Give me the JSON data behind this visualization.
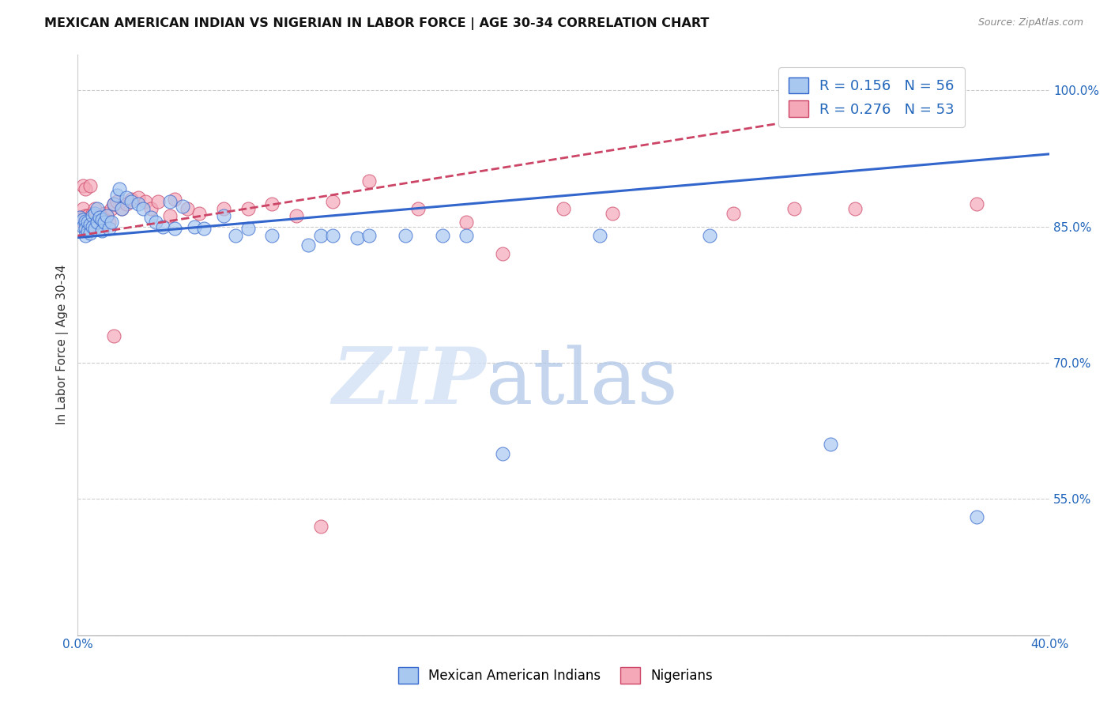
{
  "title": "MEXICAN AMERICAN INDIAN VS NIGERIAN IN LABOR FORCE | AGE 30-34 CORRELATION CHART",
  "source": "Source: ZipAtlas.com",
  "ylabel": "In Labor Force | Age 30-34",
  "xlim": [
    0.0,
    0.4
  ],
  "ylim": [
    0.4,
    1.04
  ],
  "xtick_positions": [
    0.0,
    0.1,
    0.2,
    0.3,
    0.4
  ],
  "xticklabels": [
    "0.0%",
    "",
    "",
    "",
    "40.0%"
  ],
  "ytick_positions": [
    0.4,
    0.55,
    0.7,
    0.85,
    1.0
  ],
  "yticklabels": [
    "",
    "55.0%",
    "70.0%",
    "85.0%",
    "100.0%"
  ],
  "R_blue": 0.156,
  "N_blue": 56,
  "R_pink": 0.276,
  "N_pink": 53,
  "blue_color": "#A8C8F0",
  "pink_color": "#F4A8B8",
  "trendline_blue": "#3366CC",
  "trendline_pink": "#CC4466",
  "legend_label_blue": "Mexican American Indians",
  "legend_label_pink": "Nigerians",
  "blue_x": [
    0.001,
    0.002,
    0.002,
    0.003,
    0.003,
    0.003,
    0.004,
    0.004,
    0.005,
    0.005,
    0.006,
    0.006,
    0.007,
    0.007,
    0.008,
    0.008,
    0.009,
    0.01,
    0.01,
    0.011,
    0.012,
    0.013,
    0.014,
    0.015,
    0.016,
    0.017,
    0.018,
    0.02,
    0.022,
    0.025,
    0.027,
    0.03,
    0.032,
    0.035,
    0.038,
    0.04,
    0.043,
    0.048,
    0.052,
    0.06,
    0.065,
    0.07,
    0.08,
    0.095,
    0.1,
    0.105,
    0.115,
    0.12,
    0.135,
    0.15,
    0.16,
    0.175,
    0.215,
    0.26,
    0.31,
    0.37
  ],
  "blue_y": [
    0.86,
    0.858,
    0.85,
    0.856,
    0.848,
    0.84,
    0.855,
    0.845,
    0.852,
    0.843,
    0.862,
    0.85,
    0.865,
    0.848,
    0.87,
    0.855,
    0.86,
    0.858,
    0.845,
    0.855,
    0.862,
    0.848,
    0.855,
    0.875,
    0.885,
    0.892,
    0.87,
    0.882,
    0.878,
    0.875,
    0.87,
    0.86,
    0.855,
    0.85,
    0.878,
    0.848,
    0.872,
    0.85,
    0.848,
    0.862,
    0.84,
    0.848,
    0.84,
    0.83,
    0.84,
    0.84,
    0.838,
    0.84,
    0.84,
    0.84,
    0.84,
    0.6,
    0.84,
    0.84,
    0.61,
    0.53
  ],
  "pink_x": [
    0.001,
    0.002,
    0.002,
    0.003,
    0.003,
    0.004,
    0.004,
    0.005,
    0.005,
    0.006,
    0.007,
    0.007,
    0.008,
    0.009,
    0.009,
    0.01,
    0.011,
    0.012,
    0.013,
    0.014,
    0.015,
    0.016,
    0.018,
    0.02,
    0.022,
    0.025,
    0.028,
    0.03,
    0.033,
    0.038,
    0.04,
    0.045,
    0.05,
    0.06,
    0.07,
    0.08,
    0.09,
    0.105,
    0.12,
    0.14,
    0.16,
    0.175,
    0.2,
    0.22,
    0.27,
    0.295,
    0.32,
    0.37,
    0.002,
    0.003,
    0.005,
    0.015,
    0.1
  ],
  "pink_y": [
    0.86,
    0.855,
    0.87,
    0.858,
    0.862,
    0.85,
    0.862,
    0.855,
    0.848,
    0.865,
    0.87,
    0.86,
    0.858,
    0.862,
    0.855,
    0.86,
    0.865,
    0.862,
    0.855,
    0.87,
    0.875,
    0.878,
    0.87,
    0.875,
    0.88,
    0.882,
    0.878,
    0.87,
    0.878,
    0.862,
    0.88,
    0.87,
    0.865,
    0.87,
    0.87,
    0.875,
    0.862,
    0.878,
    0.9,
    0.87,
    0.855,
    0.82,
    0.87,
    0.865,
    0.865,
    0.87,
    0.87,
    0.875,
    0.895,
    0.892,
    0.895,
    0.73,
    0.52
  ],
  "trendline_blue_x0": 0.0,
  "trendline_blue_y0": 0.838,
  "trendline_blue_x1": 0.4,
  "trendline_blue_y1": 0.93,
  "trendline_pink_x0": 0.0,
  "trendline_pink_y0": 0.84,
  "trendline_pink_x1": 0.35,
  "trendline_pink_y1": 0.99
}
